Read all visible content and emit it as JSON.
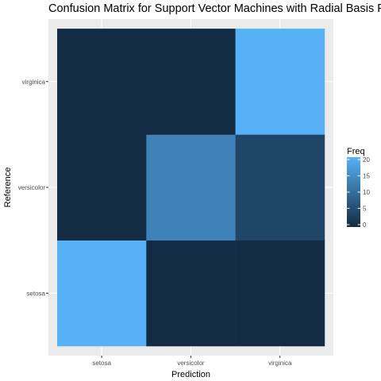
{
  "chart_data": {
    "type": "heatmap",
    "title": "Confusion Matrix for Support Vector Machines with Radial Basis Function",
    "xlabel": "Prediction",
    "ylabel": "Reference",
    "x_categories": [
      "setosa",
      "versicolor",
      "virginica"
    ],
    "y_categories": [
      "setosa",
      "versicolor",
      "virginica"
    ],
    "cells": [
      {
        "x": "setosa",
        "y": "setosa",
        "value": 20
      },
      {
        "x": "versicolor",
        "y": "setosa",
        "value": 0
      },
      {
        "x": "virginica",
        "y": "setosa",
        "value": 0
      },
      {
        "x": "setosa",
        "y": "versicolor",
        "value": 0
      },
      {
        "x": "versicolor",
        "y": "versicolor",
        "value": 13
      },
      {
        "x": "virginica",
        "y": "versicolor",
        "value": 4
      },
      {
        "x": "setosa",
        "y": "virginica",
        "value": 0
      },
      {
        "x": "versicolor",
        "y": "virginica",
        "value": 0
      },
      {
        "x": "virginica",
        "y": "virginica",
        "value": 20
      }
    ],
    "legend": {
      "title": "Freq",
      "ticks": [
        0,
        5,
        10,
        15,
        20
      ],
      "range": [
        0,
        20
      ],
      "placement": "right"
    },
    "colors": {
      "low": "#132B43",
      "high": "#56B1F7",
      "panel_background": "#EBEBEB",
      "grid": "#FFFFFF"
    }
  }
}
